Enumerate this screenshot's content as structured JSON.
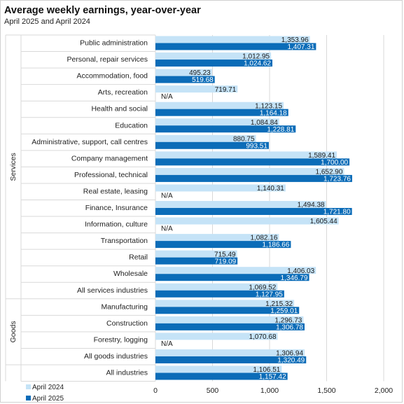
{
  "title": "Average weekly earnings, year-over-year",
  "subtitle": "April 2025 and April 2024",
  "colors": {
    "april_2024": "#c5e3f7",
    "april_2025": "#0b6cb8",
    "grid": "#d9d9d9",
    "text": "#222222"
  },
  "chart_data": {
    "type": "bar",
    "orientation": "horizontal",
    "title": "Average weekly earnings, year-over-year",
    "subtitle": "April 2025 and April 2024",
    "xlim": [
      0,
      2000
    ],
    "xticks": [
      0,
      500,
      1000,
      1500,
      2000
    ],
    "xtick_labels": [
      "0",
      "500",
      "1,000",
      "1,500",
      "2,000"
    ],
    "grid": true,
    "legend_position": "bottom-left",
    "na_label": "N/A",
    "groups": [
      {
        "name": "Services",
        "start": 0,
        "end": 15
      },
      {
        "name": "Goods",
        "start": 16,
        "end": 19
      }
    ],
    "categories": [
      "Public administration",
      "Personal, repair services",
      "Accommodation, food",
      "Arts, recreation",
      "Health and social",
      "Education",
      "Administrative, support, call centres",
      "Company management",
      "Professional, technical",
      "Real estate, leasing",
      "Finance, Insurance",
      "Information, culture",
      "Transportation",
      "Retail",
      "Wholesale",
      "All services industries",
      "Manufacturing",
      "Construction",
      "Forestry, logging",
      "All goods industries",
      "All industries"
    ],
    "series": [
      {
        "name": "April 2024",
        "values": [
          1353.96,
          1012.95,
          495.23,
          719.71,
          1123.15,
          1084.84,
          880.75,
          1589.41,
          1652.9,
          1140.31,
          1494.38,
          1605.44,
          1082.16,
          715.49,
          1406.03,
          1069.52,
          1215.32,
          1296.73,
          1070.68,
          1306.94,
          1106.51
        ],
        "labels": [
          "1,353.96",
          "1,012.95",
          "495.23",
          "719.71",
          "1,123.15",
          "1,084.84",
          "880.75",
          "1,589.41",
          "1,652.90",
          "1,140.31",
          "1,494.38",
          "1,605.44",
          "1,082.16",
          "715.49",
          "1,406.03",
          "1,069.52",
          "1,215.32",
          "1,296.73",
          "1,070.68",
          "1,306.94",
          "1,106.51"
        ]
      },
      {
        "name": "April 2025",
        "values": [
          1407.31,
          1024.62,
          519.68,
          null,
          1164.18,
          1228.81,
          993.51,
          1700.0,
          1723.76,
          null,
          1721.8,
          null,
          1186.66,
          719.09,
          1346.79,
          1127.95,
          1259.01,
          1306.78,
          null,
          1320.49,
          1157.42
        ],
        "labels": [
          "1,407.31",
          "1,024.62",
          "519.68",
          "N/A",
          "1,164.18",
          "1,228.81",
          "993.51",
          "1,700.00",
          "1,723.76",
          "N/A",
          "1,721.80",
          "N/A",
          "1,186.66",
          "719.09",
          "1,346.79",
          "1,127.95",
          "1,259.01",
          "1,306.78",
          "N/A",
          "1,320.49",
          "1,157.42"
        ]
      }
    ]
  }
}
